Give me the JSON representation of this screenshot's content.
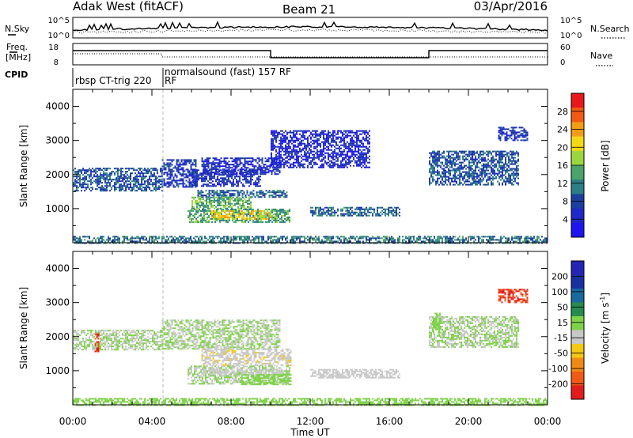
{
  "header": {
    "station": "Adak West (fitACF)",
    "beam": "Beam 21",
    "date": "03/Apr/2016"
  },
  "panels": {
    "nsky_label": "N.Sky",
    "nsky_ticks": [
      "10^5",
      "10^0"
    ],
    "nsearch_label": "N.Search",
    "freq_label": "Freq.",
    "freq_unit": "[MHz]",
    "freq_ticks": [
      "18",
      "8"
    ],
    "nave_label": "Nave",
    "nave_ticks": [
      "60",
      "0"
    ],
    "cpid_label": "CPID",
    "cpid_programs": [
      "rbsp CT-trig 220",
      "RF",
      "normalsound (fast) 157 RF"
    ]
  },
  "colorbars": {
    "power": {
      "title": "Power [dB]",
      "ticks": [
        "28",
        "24",
        "20",
        "16",
        "12",
        "8",
        "4"
      ],
      "colors": [
        "#e8191c",
        "#f25a12",
        "#f39d17",
        "#f5d815",
        "#9bd640",
        "#49a36a",
        "#2b7f84",
        "#1b3f9c",
        "#1f28c8",
        "#1d14f0"
      ]
    },
    "velocity": {
      "title": "Velocity [m s",
      "title_sup": "-1",
      "title_end": "]",
      "ticks": [
        "200",
        "100",
        "50",
        "15",
        "-15",
        "-50",
        "-100",
        "-200"
      ],
      "colors": [
        "#2525b5",
        "#1a2fa0",
        "#19699c",
        "#258b4f",
        "#7fd34a",
        "#c8c8c8",
        "#f5c815",
        "#f08a15",
        "#f05a16",
        "#e21b1b"
      ]
    }
  },
  "chart_data": [
    {
      "type": "heatmap",
      "title": "Power",
      "xlabel": "Time UT",
      "ylabel": "Slant Range [km]",
      "x_ticks": [
        "00:00",
        "04:00",
        "08:00",
        "12:00",
        "16:00",
        "20:00",
        "00:00"
      ],
      "y_ticks": [
        "4000",
        "3000",
        "2000",
        "1000"
      ],
      "xlim_hours": [
        0,
        24
      ],
      "ylim_km": [
        0,
        4500
      ],
      "colorbar_range_dB": [
        0,
        30
      ],
      "regions": [
        {
          "t_start": 0.0,
          "t_end": 4.5,
          "range_start_km": 1550,
          "range_end_km": 2200,
          "value_dB": 8
        },
        {
          "t_start": 4.5,
          "t_end": 6.2,
          "range_start_km": 1650,
          "range_end_km": 2450,
          "value_dB": 6
        },
        {
          "t_start": 6.0,
          "t_end": 9.5,
          "range_start_km": 1650,
          "range_end_km": 2150,
          "value_dB": 5
        },
        {
          "t_start": 6.5,
          "t_end": 10.5,
          "range_start_km": 2000,
          "range_end_km": 2500,
          "value_dB": 5
        },
        {
          "t_start": 6.3,
          "t_end": 10.8,
          "range_start_km": 1350,
          "range_end_km": 1550,
          "value_dB": 9
        },
        {
          "t_start": 6.0,
          "t_end": 9.0,
          "range_start_km": 1000,
          "range_end_km": 1350,
          "value_dB": 14
        },
        {
          "t_start": 5.8,
          "t_end": 11.0,
          "range_start_km": 600,
          "range_end_km": 1000,
          "value_dB": 13
        },
        {
          "t_start": 7.0,
          "t_end": 10.0,
          "range_start_km": 700,
          "range_end_km": 950,
          "value_dB": 20
        },
        {
          "t_start": 12.0,
          "t_end": 16.5,
          "range_start_km": 800,
          "range_end_km": 1050,
          "value_dB": 9
        },
        {
          "t_start": 10.0,
          "t_end": 15.0,
          "range_start_km": 2200,
          "range_end_km": 3300,
          "value_dB": 4
        },
        {
          "t_start": 18.0,
          "t_end": 22.5,
          "range_start_km": 1700,
          "range_end_km": 2700,
          "value_dB": 8
        },
        {
          "t_start": 21.5,
          "t_end": 23.0,
          "range_start_km": 3000,
          "range_end_km": 3400,
          "value_dB": 6
        },
        {
          "t_start": 0.0,
          "t_end": 24.0,
          "range_start_km": 0,
          "range_end_km": 200,
          "value_dB": 10
        }
      ]
    },
    {
      "type": "heatmap",
      "title": "Velocity",
      "xlabel": "Time UT",
      "ylabel": "Slant Range [km]",
      "x_ticks": [
        "00:00",
        "04:00",
        "08:00",
        "12:00",
        "16:00",
        "20:00",
        "00:00"
      ],
      "y_ticks": [
        "4000",
        "3000",
        "2000",
        "1000"
      ],
      "xlim_hours": [
        0,
        24
      ],
      "ylim_km": [
        0,
        4500
      ],
      "colorbar_range_m_s": [
        -250,
        250
      ],
      "regions": [
        {
          "t_start": 0.0,
          "t_end": 4.5,
          "range_start_km": 1600,
          "range_end_km": 2200,
          "value_m_s": 0
        },
        {
          "t_start": 1.1,
          "t_end": 1.3,
          "range_start_km": 1550,
          "range_end_km": 2100,
          "value_m_s": -200
        },
        {
          "t_start": 4.5,
          "t_end": 10.5,
          "range_start_km": 1650,
          "range_end_km": 2500,
          "value_m_s": 0
        },
        {
          "t_start": 6.5,
          "t_end": 11.0,
          "range_start_km": 1150,
          "range_end_km": 1650,
          "value_m_s": -40
        },
        {
          "t_start": 5.8,
          "t_end": 11.0,
          "range_start_km": 600,
          "range_end_km": 1150,
          "value_m_s": 0
        },
        {
          "t_start": 6.5,
          "t_end": 10.5,
          "range_start_km": 900,
          "range_end_km": 1050,
          "value_m_s": -30
        },
        {
          "t_start": 8.5,
          "t_end": 11.0,
          "range_start_km": 600,
          "range_end_km": 900,
          "value_m_s": 20
        },
        {
          "t_start": 12.0,
          "t_end": 16.5,
          "range_start_km": 800,
          "range_end_km": 1050,
          "value_m_s": -15
        },
        {
          "t_start": 18.0,
          "t_end": 22.5,
          "range_start_km": 1700,
          "range_end_km": 2600,
          "value_m_s": 0
        },
        {
          "t_start": 18.2,
          "t_end": 18.6,
          "range_start_km": 2100,
          "range_end_km": 2700,
          "value_m_s": 30
        },
        {
          "t_start": 21.5,
          "t_end": 23.0,
          "range_start_km": 3000,
          "range_end_km": 3400,
          "value_m_s": -200
        },
        {
          "t_start": 0.0,
          "t_end": 24.0,
          "range_start_km": 0,
          "range_end_km": 200,
          "value_m_s": 20
        }
      ]
    }
  ]
}
